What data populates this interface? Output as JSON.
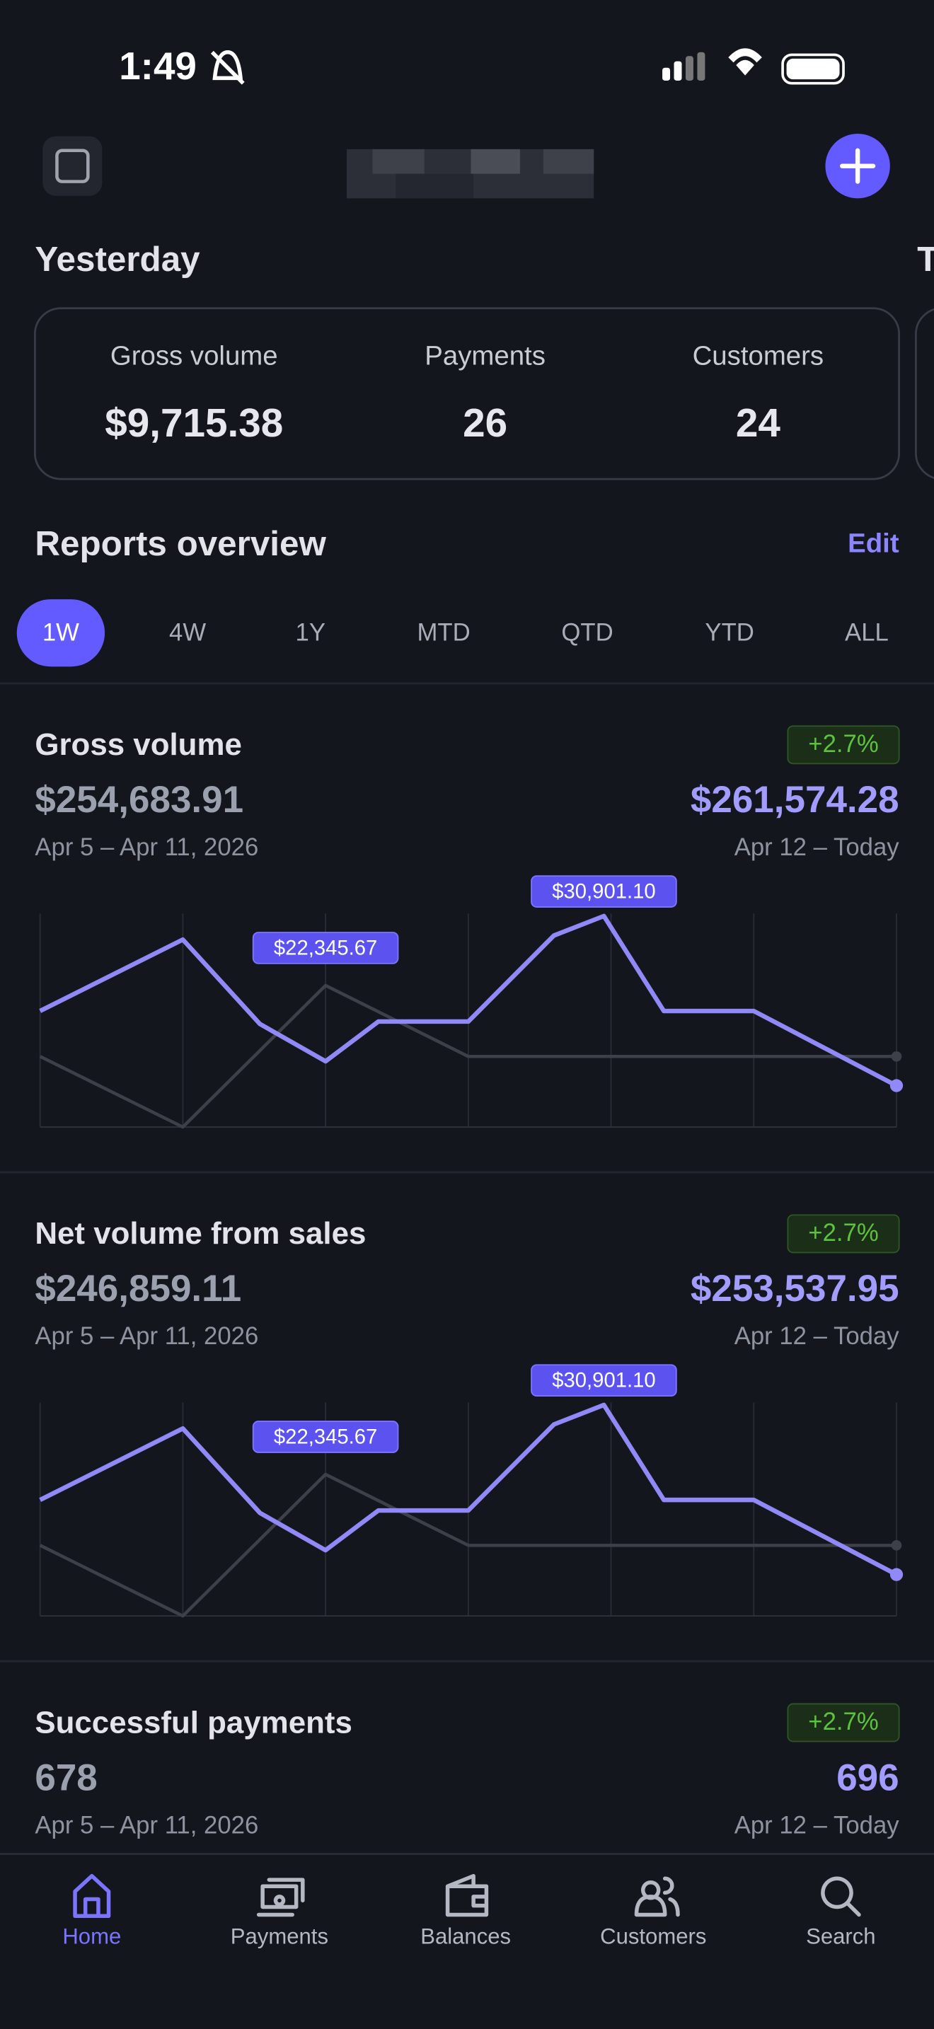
{
  "status_bar": {
    "time": "1:49"
  },
  "summary": {
    "title": "Yesterday",
    "next_title": "T",
    "stats": [
      {
        "label": "Gross volume",
        "value": "$9,715.38"
      },
      {
        "label": "Payments",
        "value": "26"
      },
      {
        "label": "Customers",
        "value": "24"
      }
    ]
  },
  "reports": {
    "title": "Reports overview",
    "edit": "Edit",
    "ranges": [
      "1W",
      "4W",
      "1Y",
      "MTD",
      "QTD",
      "YTD",
      "ALL"
    ],
    "selected": "1W"
  },
  "cards": [
    {
      "title": "Gross volume",
      "previous_value": "$254,683.91",
      "previous_range": "Apr 5 – Apr 11, 2026",
      "current_value": "$261,574.28",
      "current_range": "Apr 12 – Today",
      "change": "+2.7%",
      "chart": {
        "type": "line",
        "xlim": [
          0,
          6
        ],
        "ylim": [
          4900,
          31200
        ],
        "xticks": [
          0,
          1,
          2,
          3,
          4,
          5,
          6
        ],
        "grid": true,
        "series": [
          {
            "color": "#3d4049",
            "x": [
              0,
              1,
              2,
              3,
              6
            ],
            "values": [
              13600,
              4900,
              22345.67,
              13600,
              13600
            ],
            "value_labels": [
              null,
              null,
              "$22,345.67",
              null,
              null
            ]
          },
          {
            "color": "#9089f7",
            "x": [
              0,
              1,
              1.54,
              2,
              2.37,
              3,
              3.6,
              3.95,
              4.37,
              5,
              6
            ],
            "values": [
              19200,
              28000,
              17600,
              13000,
              17900,
              17900,
              28500,
              30901.1,
              19200,
              19200,
              10000
            ],
            "value_labels": [
              null,
              null,
              null,
              null,
              null,
              null,
              null,
              "$30,901.10",
              null,
              null,
              null
            ]
          }
        ]
      }
    },
    {
      "title": "Net volume from sales",
      "previous_value": "$246,859.11",
      "previous_range": "Apr 5 – Apr 11, 2026",
      "current_value": "$253,537.95",
      "current_range": "Apr 12 – Today",
      "change": "+2.7%",
      "chart": {
        "type": "line",
        "xlim": [
          0,
          6
        ],
        "ylim": [
          4900,
          31200
        ],
        "xticks": [
          0,
          1,
          2,
          3,
          4,
          5,
          6
        ],
        "grid": true,
        "series": [
          {
            "color": "#3d4049",
            "x": [
              0,
              1,
              2,
              3,
              6
            ],
            "values": [
              13600,
              4900,
              22345.67,
              13600,
              13600
            ],
            "value_labels": [
              null,
              null,
              "$22,345.67",
              null,
              null
            ]
          },
          {
            "color": "#9089f7",
            "x": [
              0,
              1,
              1.54,
              2,
              2.37,
              3,
              3.6,
              3.95,
              4.37,
              5,
              6
            ],
            "values": [
              19200,
              28000,
              17600,
              13000,
              17900,
              17900,
              28500,
              30901.1,
              19200,
              19200,
              10000
            ],
            "value_labels": [
              null,
              null,
              null,
              null,
              null,
              null,
              null,
              "$30,901.10",
              null,
              null,
              null
            ]
          }
        ]
      }
    },
    {
      "title": "Successful payments",
      "previous_value": "678",
      "previous_range": "Apr 5 – Apr 11, 2026",
      "current_value": "696",
      "current_range": "Apr 12 – Today",
      "change": "+2.7%"
    }
  ],
  "nav": {
    "items": [
      "Home",
      "Payments",
      "Balances",
      "Customers",
      "Search"
    ],
    "active": "Home"
  }
}
